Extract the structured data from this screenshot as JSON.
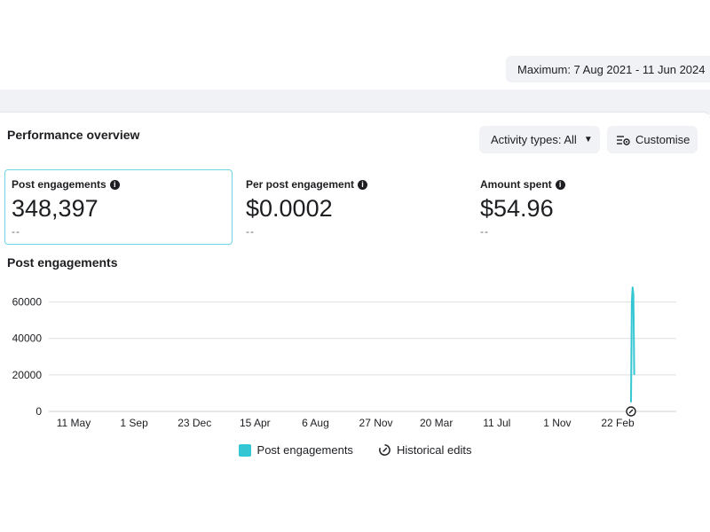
{
  "header": {
    "date_range_label": "Maximum: 7 Aug 2021 - 11 Jun 2024"
  },
  "performance": {
    "title": "Performance overview",
    "activity_button": "Activity types: All",
    "customise_button": "Customise"
  },
  "metrics": [
    {
      "label": "Post engagements",
      "value": "348,397",
      "compare": "--"
    },
    {
      "label": "Per post engagement",
      "value": "$0.0002",
      "compare": "--"
    },
    {
      "label": "Amount spent",
      "value": "$54.96",
      "compare": "--"
    }
  ],
  "colors": {
    "accent": "#35c6d3",
    "selected_border": "#6fd4e4",
    "grid": "#dddfe2",
    "button_bg": "#f0f2f5"
  },
  "chart_data": {
    "type": "line",
    "title": "Post engagements",
    "xlabel": "",
    "ylabel": "",
    "yticks": [
      0,
      20000,
      40000,
      60000
    ],
    "ytick_labels": [
      "0",
      "20000",
      "40000",
      "60000"
    ],
    "xtick_labels": [
      "11 May",
      "1 Sep",
      "23 Dec",
      "15 Apr",
      "6 Aug",
      "27 Nov",
      "20 Mar",
      "11 Jul",
      "1 Nov",
      "22 Feb"
    ],
    "ylim": [
      0,
      70000
    ],
    "x_domain": [
      0,
      1020
    ],
    "xtick_positions": [
      0,
      113,
      226,
      339,
      452,
      565,
      678,
      791,
      904,
      1017
    ],
    "series": [
      {
        "name": "Post engagements",
        "color": "#35c6d3",
        "points": [
          [
            1020,
            5000
          ],
          [
            1021,
            60000
          ],
          [
            1022,
            68000
          ],
          [
            1023,
            64000
          ],
          [
            1024,
            20000
          ]
        ]
      }
    ],
    "legend": [
      "Post engagements",
      "Historical edits"
    ],
    "legend_position": "bottom",
    "grid": true
  }
}
